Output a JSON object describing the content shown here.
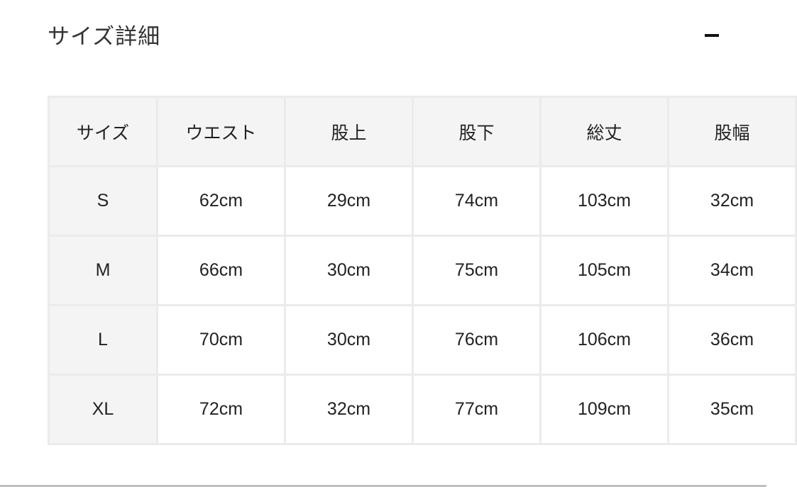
{
  "section": {
    "title": "サイズ詳細",
    "collapse_icon": "minus-icon"
  },
  "table": {
    "headers": [
      "サイズ",
      "ウエスト",
      "股上",
      "股下",
      "総丈",
      "股幅"
    ],
    "rows": [
      [
        "S",
        "62cm",
        "29cm",
        "74cm",
        "103cm",
        "32cm"
      ],
      [
        "M",
        "66cm",
        "30cm",
        "75cm",
        "105cm",
        "34cm"
      ],
      [
        "L",
        "70cm",
        "30cm",
        "76cm",
        "106cm",
        "36cm"
      ],
      [
        "XL",
        "72cm",
        "32cm",
        "77cm",
        "109cm",
        "35cm"
      ]
    ]
  }
}
